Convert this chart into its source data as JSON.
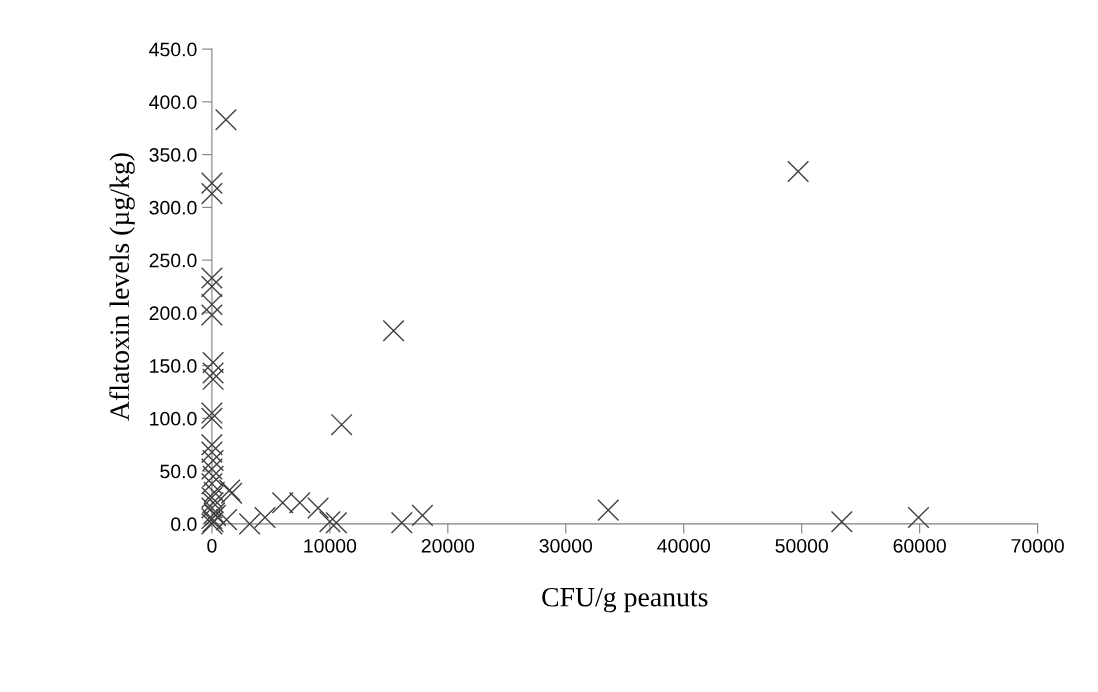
{
  "chart_data": {
    "type": "scatter",
    "xlabel": "CFU/g peanuts",
    "ylabel": "Aflatoxin levels (µg/kg)",
    "xlim": [
      0,
      70000
    ],
    "xticks": [
      0,
      10000,
      20000,
      30000,
      40000,
      50000,
      60000,
      70000
    ],
    "ylim": [
      0,
      450
    ],
    "yticks": [
      {
        "value": 0,
        "label": "0.0"
      },
      {
        "value": 50,
        "label": "50.0"
      },
      {
        "value": 100,
        "label": "100.0"
      },
      {
        "value": 150,
        "label": "150.0"
      },
      {
        "value": 200,
        "label": "200.0"
      },
      {
        "value": 250,
        "label": "250.0"
      },
      {
        "value": 300,
        "label": "300.0"
      },
      {
        "value": 350,
        "label": "350.0"
      },
      {
        "value": 400,
        "label": "400.0"
      },
      {
        "value": 450,
        "label": "450.0"
      }
    ],
    "grid": false,
    "legend": false,
    "marker": "cross",
    "series": [
      {
        "color": "#404040",
        "x": [
          1190,
          0,
          0,
          0,
          0,
          0,
          0,
          100,
          100,
          100,
          0,
          0,
          15400,
          11000,
          0,
          0,
          100,
          0,
          100,
          0,
          200,
          0,
          100,
          0,
          200,
          0,
          100,
          300,
          0,
          1670,
          1500,
          1240,
          3200,
          4500,
          6000,
          7450,
          9000,
          10000,
          10550,
          16100,
          17850,
          33600,
          49700,
          53400,
          59900
        ],
        "values": [
          383,
          323,
          313,
          233,
          225,
          208,
          198,
          153,
          143,
          137,
          105,
          100,
          183,
          94,
          75,
          68,
          60,
          52,
          45,
          38,
          30,
          25,
          20,
          15,
          10,
          5,
          2,
          8,
          0,
          29,
          32,
          4,
          0,
          6,
          20,
          20,
          15,
          2,
          1,
          1,
          8,
          13,
          334,
          2,
          6
        ]
      }
    ]
  }
}
